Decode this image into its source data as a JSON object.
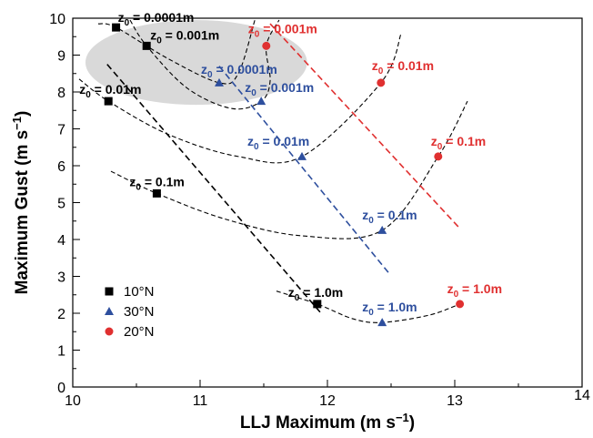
{
  "chart_data": {
    "type": "scatter",
    "xlabel": "LLJ Maximum (m s",
    "xlabel_sup": "−1",
    "xlabel_end": ")",
    "ylabel": "Maximum Gust (m s",
    "ylabel_sup": "−1",
    "ylabel_end": ")",
    "xlim": [
      10,
      14
    ],
    "ylim": [
      0,
      10
    ],
    "x_ticks": [
      "10",
      "11",
      "12",
      "13",
      "14"
    ],
    "y_ticks": [
      "0",
      "1",
      "2",
      "3",
      "4",
      "5",
      "6",
      "7",
      "8",
      "9",
      "10"
    ],
    "grid": false,
    "legend_position": "bottom-left",
    "series": [
      {
        "name": "10°N",
        "color": "#000000",
        "marker": "square",
        "points": [
          {
            "x": 10.34,
            "y": 9.75,
            "z0": "0.0001m"
          },
          {
            "x": 10.58,
            "y": 9.25,
            "z0": "0.001m"
          },
          {
            "x": 10.28,
            "y": 7.75,
            "z0": "0.01m"
          },
          {
            "x": 10.66,
            "y": 5.25,
            "z0": "0.1m"
          },
          {
            "x": 11.92,
            "y": 2.25,
            "z0": "1.0m"
          }
        ],
        "trend": [
          [
            10.27,
            8.75
          ],
          [
            11.95,
            2.0
          ]
        ]
      },
      {
        "name": "30°N",
        "color": "#2e4f9e",
        "marker": "triangle",
        "points": [
          {
            "x": 11.15,
            "y": 8.25,
            "z0": "0.0001m"
          },
          {
            "x": 11.48,
            "y": 7.75,
            "z0": "0.001m"
          },
          {
            "x": 11.8,
            "y": 6.25,
            "z0": "0.01m"
          },
          {
            "x": 12.43,
            "y": 4.25,
            "z0": "0.1m"
          },
          {
            "x": 12.43,
            "y": 1.75,
            "z0": "1.0m"
          }
        ],
        "trend": [
          [
            11.15,
            8.7
          ],
          [
            12.48,
            3.1
          ]
        ]
      },
      {
        "name": "20°N",
        "color": "#e03030",
        "marker": "circle",
        "points": [
          {
            "x": 11.52,
            "y": 9.25,
            "z0": "0.001m"
          },
          {
            "x": 12.42,
            "y": 8.25,
            "z0": "0.01m"
          },
          {
            "x": 12.87,
            "y": 6.25,
            "z0": "0.1m"
          },
          {
            "x": 13.04,
            "y": 2.25,
            "z0": "1.0m"
          }
        ],
        "trend": [
          [
            11.55,
            9.85
          ],
          [
            13.04,
            4.3
          ]
        ]
      }
    ],
    "iso_curves": [
      {
        "z0": "0.0001m",
        "points": [
          [
            10.2,
            9.85
          ],
          [
            10.34,
            9.75
          ],
          [
            10.75,
            8.9
          ],
          [
            11.15,
            8.25
          ],
          [
            11.3,
            8.5
          ],
          [
            11.43,
            9.95
          ]
        ]
      },
      {
        "z0": "0.001m",
        "points": [
          [
            10.45,
            9.95
          ],
          [
            10.58,
            9.25
          ],
          [
            10.9,
            8.1
          ],
          [
            11.25,
            7.55
          ],
          [
            11.48,
            7.75
          ],
          [
            11.55,
            8.3
          ],
          [
            11.52,
            9.25
          ],
          [
            11.62,
            9.95
          ]
        ]
      },
      {
        "z0": "0.01m",
        "points": [
          [
            10.05,
            8.35
          ],
          [
            10.28,
            7.75
          ],
          [
            10.75,
            6.85
          ],
          [
            11.3,
            6.25
          ],
          [
            11.8,
            6.25
          ],
          [
            12.42,
            8.25
          ],
          [
            12.58,
            9.6
          ]
        ]
      },
      {
        "z0": "0.1m",
        "points": [
          [
            10.3,
            5.85
          ],
          [
            10.66,
            5.25
          ],
          [
            11.2,
            4.55
          ],
          [
            11.8,
            4.1
          ],
          [
            12.43,
            4.25
          ],
          [
            12.87,
            6.25
          ],
          [
            13.1,
            7.75
          ]
        ]
      },
      {
        "z0": "1.0m",
        "points": [
          [
            11.6,
            2.6
          ],
          [
            11.92,
            2.25
          ],
          [
            12.2,
            1.85
          ],
          [
            12.43,
            1.75
          ],
          [
            12.8,
            1.95
          ],
          [
            13.04,
            2.25
          ]
        ]
      }
    ],
    "shaded_region": {
      "cx": 10.97,
      "cy": 8.8,
      "rx": 0.87,
      "ry": 1.15,
      "color": "#d9d9d9"
    }
  }
}
